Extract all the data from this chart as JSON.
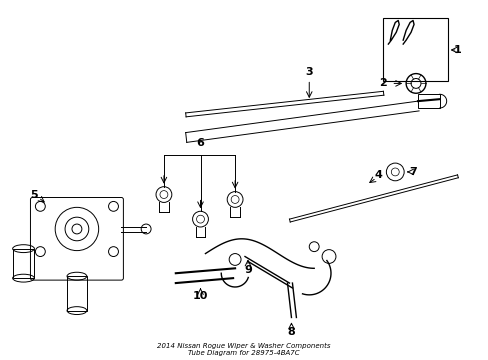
{
  "title": "2014 Nissan Rogue Wiper & Washer Components\nTube Diagram for 28975-4BA7C",
  "background_color": "#ffffff",
  "line_color": "#000000",
  "fig_width": 4.89,
  "fig_height": 3.6,
  "dpi": 100
}
